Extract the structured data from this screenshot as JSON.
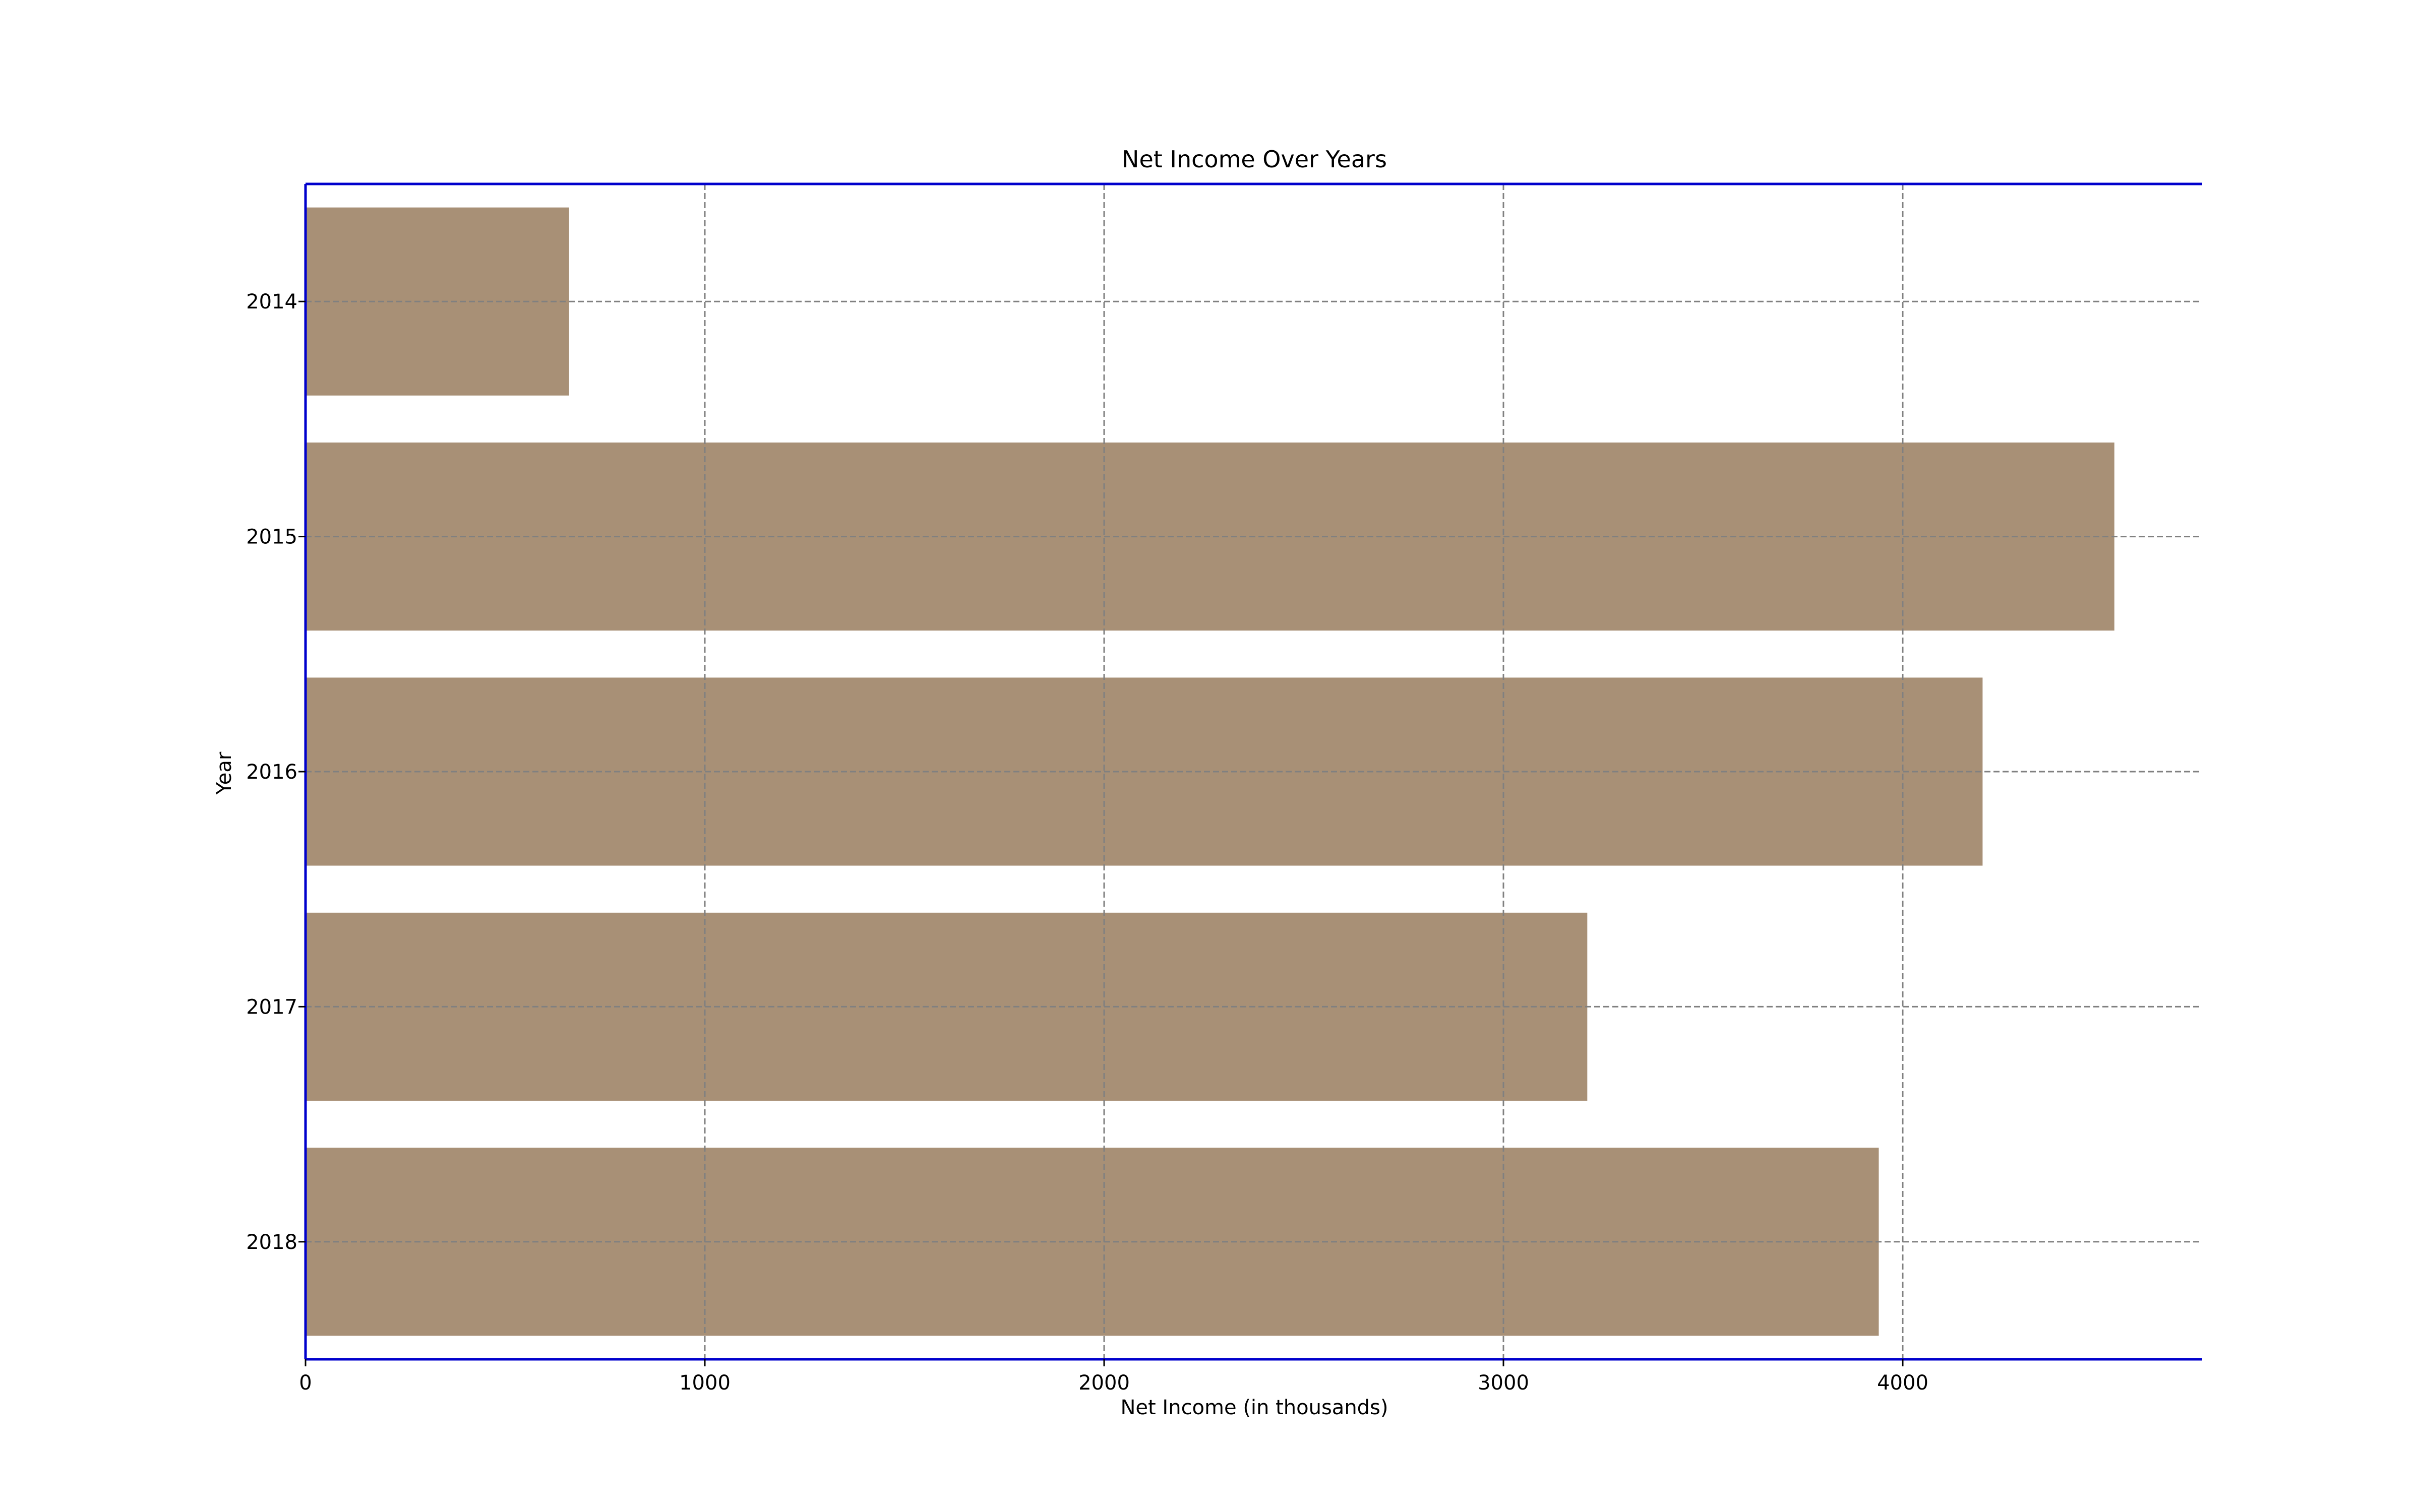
{
  "chart_data": {
    "type": "bar",
    "orientation": "horizontal",
    "title": "Net Income Over Years",
    "xlabel": "Net Income (in thousands)",
    "ylabel": "Year",
    "categories": [
      "2014",
      "2015",
      "2016",
      "2017",
      "2018"
    ],
    "values": [
      660,
      4530,
      4200,
      3210,
      3940
    ],
    "xlim": [
      0,
      4750
    ],
    "xticks": [
      0,
      1000,
      2000,
      3000,
      4000
    ],
    "grid": true,
    "bar_color": "#a89076",
    "axis_color": "#0000cc",
    "grid_color": "#808080"
  }
}
